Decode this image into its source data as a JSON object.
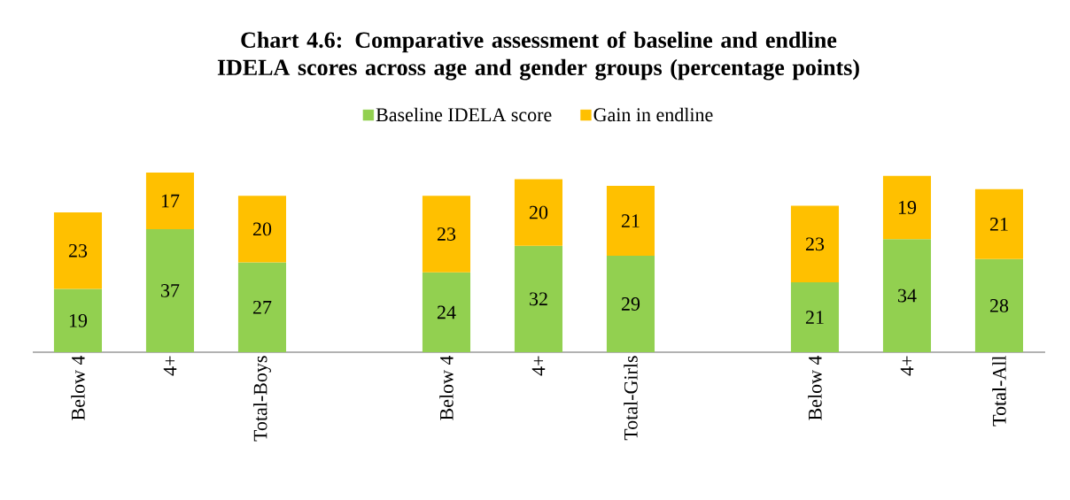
{
  "chart_data": {
    "type": "bar",
    "stacked": true,
    "title": "Chart 4.6: Comparative assessment of baseline and endline IDELA scores across age and gender groups  (percentage points)",
    "categories": [
      "Below 4",
      "4+",
      "Total-Boys",
      null,
      "Below 4",
      "4+",
      "Total-Girls",
      null,
      "Below 4",
      "4+",
      "Total-All"
    ],
    "series": [
      {
        "name": "Baseline IDELA score",
        "color": "#92d050",
        "values": [
          19,
          37,
          27,
          null,
          24,
          32,
          29,
          null,
          21,
          34,
          28
        ]
      },
      {
        "name": "Gain in endline",
        "color": "#ffc000",
        "values": [
          23,
          17,
          20,
          null,
          23,
          20,
          21,
          null,
          23,
          19,
          21
        ]
      }
    ],
    "data_labels": true,
    "legend": "top",
    "tick_labels": "x",
    "grid": false
  }
}
